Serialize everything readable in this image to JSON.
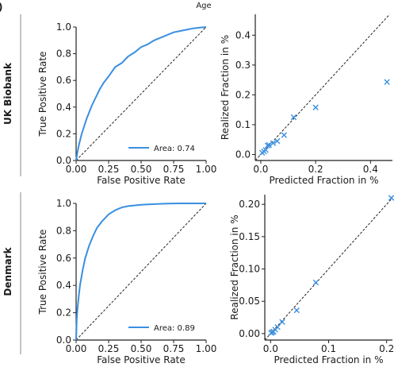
{
  "panel_letter": ")",
  "top_title": "Age",
  "row_labels": [
    "UK Biobank",
    "Denmark"
  ],
  "colors": {
    "curve": "#3a8fe0",
    "axis": "#222222",
    "divider": "#b0b0b0",
    "diagonal": "#222222"
  },
  "chart_data": [
    {
      "type": "line",
      "row": "UK Biobank",
      "xlabel": "False Positive Rate",
      "ylabel": "True Positive Rate",
      "xlim": [
        0,
        1
      ],
      "ylim": [
        0,
        1
      ],
      "xticks": [
        "0.00",
        "0.25",
        "0.50",
        "0.75",
        "1.00"
      ],
      "yticks": [
        "0.0",
        "0.2",
        "0.4",
        "0.6",
        "0.8",
        "1.0"
      ],
      "xtick_values": [
        0,
        0.25,
        0.5,
        0.75,
        1
      ],
      "ytick_values": [
        0,
        0.2,
        0.4,
        0.6,
        0.8,
        1
      ],
      "legend": "Area: 0.74",
      "legend_position": "bottom-right",
      "diagonal": true,
      "series": [
        {
          "x": [
            0,
            0.01,
            0.02,
            0.04,
            0.06,
            0.08,
            0.1,
            0.12,
            0.15,
            0.18,
            0.21,
            0.25,
            0.3,
            0.35,
            0.4,
            0.45,
            0.5,
            0.55,
            0.6,
            0.65,
            0.7,
            0.75,
            0.8,
            0.85,
            0.9,
            0.95,
            1.0
          ],
          "y": [
            0,
            0.06,
            0.11,
            0.19,
            0.25,
            0.31,
            0.36,
            0.41,
            0.47,
            0.53,
            0.58,
            0.63,
            0.7,
            0.73,
            0.78,
            0.81,
            0.85,
            0.87,
            0.9,
            0.92,
            0.94,
            0.96,
            0.97,
            0.98,
            0.99,
            0.995,
            1.0
          ]
        }
      ]
    },
    {
      "type": "scatter",
      "row": "UK Biobank",
      "xlabel": "Predicted Fraction in %",
      "ylabel": "Realized Fraction in %",
      "xlim": [
        -0.02,
        0.48
      ],
      "ylim": [
        -0.02,
        0.47
      ],
      "xticks": [
        "0.0",
        "0.2",
        "0.4"
      ],
      "yticks": [
        "0.0",
        "0.1",
        "0.2",
        "0.3",
        "0.4"
      ],
      "xtick_values": [
        0,
        0.2,
        0.4
      ],
      "ytick_values": [
        0,
        0.1,
        0.2,
        0.3,
        0.4
      ],
      "diagonal": true,
      "series": [
        {
          "x": [
            0.005,
            0.012,
            0.018,
            0.025,
            0.03,
            0.045,
            0.06,
            0.085,
            0.12,
            0.2,
            0.46
          ],
          "y": [
            0.006,
            0.01,
            0.015,
            0.03,
            0.032,
            0.038,
            0.045,
            0.065,
            0.125,
            0.158,
            0.243
          ]
        }
      ]
    },
    {
      "type": "line",
      "row": "Denmark",
      "xlabel": "False Positive Rate",
      "ylabel": "True Positive Rate",
      "xlim": [
        0,
        1
      ],
      "ylim": [
        0,
        1
      ],
      "xticks": [
        "0.00",
        "0.25",
        "0.50",
        "0.75",
        "1.00"
      ],
      "yticks": [
        "0.0",
        "0.2",
        "0.4",
        "0.6",
        "0.8",
        "1.0"
      ],
      "xtick_values": [
        0,
        0.25,
        0.5,
        0.75,
        1
      ],
      "ytick_values": [
        0,
        0.2,
        0.4,
        0.6,
        0.8,
        1
      ],
      "legend": "Area: 0.89",
      "legend_position": "bottom-right",
      "diagonal": true,
      "series": [
        {
          "x": [
            0,
            0.005,
            0.01,
            0.02,
            0.03,
            0.05,
            0.07,
            0.1,
            0.13,
            0.16,
            0.2,
            0.25,
            0.3,
            0.35,
            0.4,
            0.5,
            0.6,
            0.7,
            0.8,
            0.9,
            1.0
          ],
          "y": [
            0,
            0.15,
            0.22,
            0.32,
            0.4,
            0.51,
            0.6,
            0.69,
            0.76,
            0.82,
            0.87,
            0.92,
            0.95,
            0.97,
            0.98,
            0.99,
            0.995,
            0.998,
            1.0,
            1.0,
            1.0
          ]
        }
      ]
    },
    {
      "type": "scatter",
      "row": "Denmark",
      "xlabel": "Predicted Fraction in %",
      "ylabel": "Realized Fraction in %",
      "xlim": [
        -0.01,
        0.21
      ],
      "ylim": [
        -0.01,
        0.215
      ],
      "xticks": [
        "0.0",
        "0.1",
        "0.2"
      ],
      "yticks": [
        "0.00",
        "0.05",
        "0.10",
        "0.15",
        "0.20"
      ],
      "xtick_values": [
        0,
        0.1,
        0.2
      ],
      "ytick_values": [
        0,
        0.05,
        0.1,
        0.15,
        0.2
      ],
      "diagonal": true,
      "series": [
        {
          "x": [
            0.001,
            0.003,
            0.005,
            0.008,
            0.012,
            0.02,
            0.045,
            0.078,
            0.208
          ],
          "y": [
            0.001,
            0.002,
            0.003,
            0.006,
            0.01,
            0.018,
            0.036,
            0.079,
            0.21
          ]
        }
      ]
    }
  ]
}
